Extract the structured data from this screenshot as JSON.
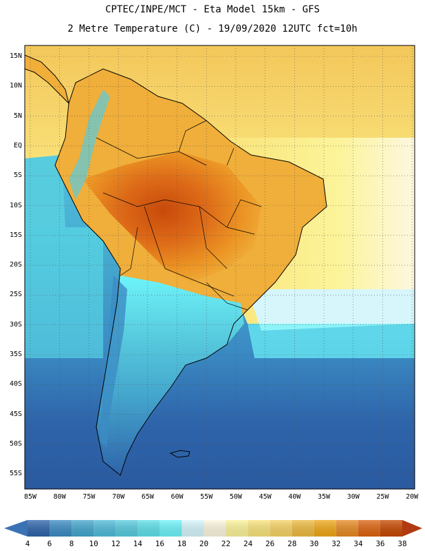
{
  "title_line1": "CPTEC/INPE/MCT -  Eta Model 15km - GFS",
  "title_line2": "2 Metre Temperature (C) - 19/09/2020 12UTC fct=10h",
  "lat_ticks": [
    "15N",
    "10N",
    "5N",
    "EQ",
    "5S",
    "10S",
    "15S",
    "20S",
    "25S",
    "30S",
    "35S",
    "40S",
    "45S",
    "50S",
    "55S"
  ],
  "lon_ticks": [
    "85W",
    "80W",
    "75W",
    "70W",
    "65W",
    "60W",
    "55W",
    "50W",
    "45W",
    "40W",
    "35W",
    "30W",
    "25W",
    "20W"
  ],
  "colorbar": {
    "labels": [
      "4",
      "6",
      "8",
      "10",
      "12",
      "14",
      "16",
      "18",
      "20",
      "22",
      "24",
      "26",
      "28",
      "30",
      "32",
      "34",
      "36",
      "38"
    ],
    "colors": [
      "#3a72b4",
      "#2e64aa",
      "#3b8cc4",
      "#44a6cd",
      "#4fbcd9",
      "#58ccdf",
      "#5ee0ea",
      "#6ef4fa",
      "#d6f6fc",
      "#fdf7e0",
      "#fcf49a",
      "#f9e47a",
      "#f6d364",
      "#eebb40",
      "#f0a818",
      "#e78a22",
      "#dd6410",
      "#c64800",
      "#b13a10"
    ]
  }
}
